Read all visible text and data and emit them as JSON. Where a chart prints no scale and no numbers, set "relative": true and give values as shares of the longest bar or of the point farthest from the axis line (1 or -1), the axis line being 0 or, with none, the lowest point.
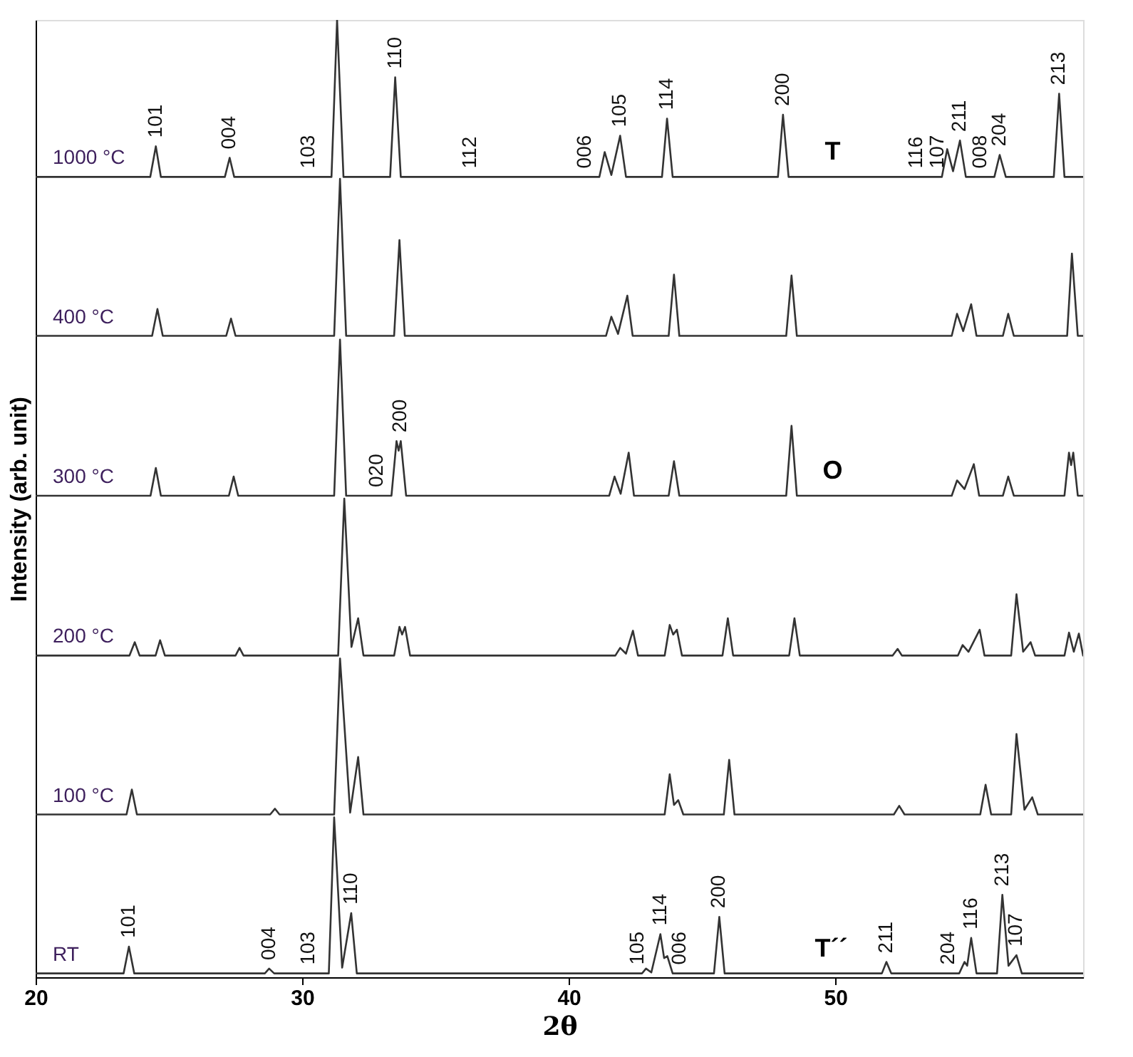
{
  "chart_data": {
    "type": "line",
    "relative": true,
    "xlabel": "2θ",
    "ylabel": "Intensity (arb. unit)",
    "xlim": [
      20,
      59.3
    ],
    "xticks": [
      20,
      30,
      40,
      50
    ],
    "grid": false,
    "legend": false,
    "marker": "none",
    "line_style": "solid",
    "series": [
      {
        "name": "1000 °C",
        "color": "#333333",
        "x": [
          20,
          24.3,
          24.51,
          24.7,
          27.1,
          27.28,
          27.45,
          31.1,
          31.31,
          31.55,
          33.3,
          33.49,
          33.7,
          41.15,
          41.35,
          41.6,
          41.93,
          42.15,
          43.5,
          43.69,
          43.9,
          47.85,
          48.04,
          48.25,
          54.0,
          54.2,
          54.42,
          54.68,
          54.9,
          55.97,
          56.17,
          56.4,
          58.2,
          58.4,
          58.6,
          59.3
        ],
        "values": [
          0.836,
          0.836,
          0.868,
          0.836,
          0.836,
          0.856,
          0.836,
          0.836,
          1.0,
          0.836,
          0.836,
          0.94,
          0.836,
          0.836,
          0.862,
          0.838,
          0.879,
          0.836,
          0.836,
          0.897,
          0.836,
          0.836,
          0.901,
          0.836,
          0.836,
          0.865,
          0.842,
          0.874,
          0.836,
          0.836,
          0.859,
          0.836,
          0.836,
          0.923,
          0.836,
          0.836
        ]
      },
      {
        "name": "400 °C",
        "color": "#333333",
        "x": [
          20,
          24.37,
          24.57,
          24.77,
          27.15,
          27.33,
          27.5,
          31.2,
          31.42,
          31.65,
          33.45,
          33.65,
          33.85,
          41.4,
          41.6,
          41.85,
          42.2,
          42.4,
          43.75,
          43.95,
          44.15,
          48.16,
          48.36,
          48.56,
          54.37,
          54.57,
          54.8,
          55.1,
          55.3,
          56.29,
          56.49,
          56.7,
          58.7,
          58.88,
          59.1,
          59.3
        ],
        "values": [
          0.67,
          0.67,
          0.698,
          0.67,
          0.67,
          0.688,
          0.67,
          0.67,
          0.834,
          0.67,
          0.67,
          0.77,
          0.67,
          0.67,
          0.69,
          0.672,
          0.712,
          0.67,
          0.67,
          0.734,
          0.67,
          0.67,
          0.733,
          0.67,
          0.67,
          0.693,
          0.675,
          0.703,
          0.67,
          0.67,
          0.693,
          0.67,
          0.67,
          0.756,
          0.67,
          0.67
        ]
      },
      {
        "name": "300 °C",
        "color": "#333333",
        "x": [
          20,
          24.31,
          24.51,
          24.7,
          27.25,
          27.43,
          27.6,
          31.2,
          31.42,
          31.65,
          33.35,
          33.54,
          33.62,
          33.7,
          33.9,
          41.52,
          41.72,
          41.95,
          42.25,
          42.45,
          43.75,
          43.95,
          44.15,
          48.16,
          48.36,
          48.56,
          54.37,
          54.57,
          54.85,
          55.2,
          55.4,
          56.29,
          56.49,
          56.7,
          58.6,
          58.77,
          58.85,
          58.93,
          59.1,
          59.3
        ],
        "values": [
          0.503,
          0.503,
          0.532,
          0.503,
          0.503,
          0.523,
          0.503,
          0.503,
          0.666,
          0.503,
          0.503,
          0.56,
          0.55,
          0.56,
          0.503,
          0.503,
          0.523,
          0.505,
          0.548,
          0.503,
          0.503,
          0.539,
          0.503,
          0.503,
          0.576,
          0.503,
          0.503,
          0.519,
          0.51,
          0.536,
          0.503,
          0.503,
          0.523,
          0.503,
          0.503,
          0.548,
          0.535,
          0.548,
          0.503,
          0.503
        ]
      },
      {
        "name": "200 °C",
        "color": "#333333",
        "x": [
          20,
          23.52,
          23.72,
          23.9,
          24.5,
          24.67,
          24.85,
          27.5,
          27.65,
          27.8,
          31.35,
          31.58,
          31.85,
          32.1,
          32.3,
          33.45,
          33.65,
          33.75,
          33.86,
          34.05,
          41.75,
          41.93,
          42.15,
          42.41,
          42.6,
          43.6,
          43.79,
          43.92,
          44.06,
          44.25,
          45.77,
          45.97,
          46.17,
          48.27,
          48.47,
          48.67,
          52.15,
          52.34,
          52.5,
          54.6,
          54.78,
          55.0,
          55.42,
          55.6,
          56.6,
          56.8,
          57.05,
          57.33,
          57.5,
          58.6,
          58.77,
          58.95,
          59.14,
          59.3
        ],
        "values": [
          0.336,
          0.336,
          0.35,
          0.336,
          0.336,
          0.352,
          0.336,
          0.336,
          0.344,
          0.336,
          0.336,
          0.5,
          0.345,
          0.375,
          0.336,
          0.336,
          0.366,
          0.358,
          0.366,
          0.336,
          0.336,
          0.344,
          0.338,
          0.362,
          0.336,
          0.336,
          0.368,
          0.358,
          0.363,
          0.336,
          0.336,
          0.375,
          0.336,
          0.336,
          0.375,
          0.336,
          0.336,
          0.343,
          0.336,
          0.336,
          0.347,
          0.34,
          0.363,
          0.336,
          0.336,
          0.4,
          0.34,
          0.35,
          0.336,
          0.336,
          0.36,
          0.34,
          0.359,
          0.336
        ]
      },
      {
        "name": "100 °C",
        "color": "#333333",
        "x": [
          20,
          23.41,
          23.61,
          23.8,
          28.8,
          28.98,
          29.15,
          31.2,
          31.42,
          31.8,
          32.1,
          32.3,
          43.6,
          43.79,
          43.95,
          44.11,
          44.3,
          45.82,
          46.02,
          46.22,
          52.2,
          52.4,
          52.6,
          55.44,
          55.64,
          55.85,
          56.6,
          56.8,
          57.1,
          57.39,
          57.6,
          59.3
        ],
        "values": [
          0.17,
          0.17,
          0.196,
          0.17,
          0.17,
          0.176,
          0.17,
          0.17,
          0.333,
          0.172,
          0.23,
          0.17,
          0.17,
          0.212,
          0.18,
          0.185,
          0.17,
          0.17,
          0.227,
          0.17,
          0.17,
          0.179,
          0.17,
          0.17,
          0.201,
          0.17,
          0.17,
          0.254,
          0.175,
          0.188,
          0.17,
          0.17
        ]
      },
      {
        "name": "RT",
        "color": "#333333",
        "x": [
          20,
          23.3,
          23.5,
          23.7,
          28.6,
          28.76,
          28.95,
          31.0,
          31.2,
          31.5,
          31.84,
          32.05,
          42.75,
          42.9,
          43.1,
          43.44,
          43.58,
          43.7,
          43.9,
          45.45,
          45.65,
          45.85,
          51.75,
          51.92,
          52.1,
          54.65,
          54.85,
          54.95,
          55.1,
          55.3,
          56.07,
          56.27,
          56.5,
          56.8,
          57.0,
          59.3
        ],
        "values": [
          0.004,
          0.004,
          0.032,
          0.004,
          0.004,
          0.009,
          0.004,
          0.004,
          0.167,
          0.01,
          0.067,
          0.004,
          0.004,
          0.009,
          0.005,
          0.045,
          0.02,
          0.022,
          0.004,
          0.004,
          0.063,
          0.004,
          0.004,
          0.016,
          0.004,
          0.004,
          0.016,
          0.012,
          0.041,
          0.004,
          0.004,
          0.086,
          0.012,
          0.023,
          0.004,
          0.004
        ]
      }
    ],
    "annotations": [
      {
        "text": "101",
        "x": 24.51,
        "y": 0.868
      },
      {
        "text": "004",
        "x": 27.28,
        "y": 0.856
      },
      {
        "text": "103",
        "x": 30.25,
        "y": 0.836
      },
      {
        "text": "110",
        "x": 33.49,
        "y": 0.94
      },
      {
        "text": "112",
        "x": 36.3,
        "y": 0.836
      },
      {
        "text": "006",
        "x": 40.6,
        "y": 0.836
      },
      {
        "text": "105",
        "x": 41.93,
        "y": 0.879
      },
      {
        "text": "114",
        "x": 43.69,
        "y": 0.897
      },
      {
        "text": "200",
        "x": 48.04,
        "y": 0.901
      },
      {
        "text": "T",
        "x": 49.9,
        "y": 0.836
      },
      {
        "text": "116",
        "x": 53.05,
        "y": 0.836
      },
      {
        "text": "107",
        "x": 53.85,
        "y": 0.836
      },
      {
        "text": "211",
        "x": 54.68,
        "y": 0.874
      },
      {
        "text": "008",
        "x": 55.45,
        "y": 0.836
      },
      {
        "text": "204",
        "x": 56.17,
        "y": 0.859
      },
      {
        "text": "213",
        "x": 58.4,
        "y": 0.923
      },
      {
        "text": "020",
        "x": 32.8,
        "y": 0.503
      },
      {
        "text": "200",
        "x": 33.7,
        "y": 0.56
      },
      {
        "text": "O",
        "x": 49.9,
        "y": 0.503
      },
      {
        "text": "101",
        "x": 23.5,
        "y": 0.032
      },
      {
        "text": "004",
        "x": 28.76,
        "y": 0.009
      },
      {
        "text": "103",
        "x": 30.25,
        "y": 0.004
      },
      {
        "text": "110",
        "x": 31.84,
        "y": 0.067
      },
      {
        "text": "105",
        "x": 42.6,
        "y": 0.004
      },
      {
        "text": "114",
        "x": 43.44,
        "y": 0.045
      },
      {
        "text": "006",
        "x": 44.16,
        "y": 0.004
      },
      {
        "text": "200",
        "x": 45.65,
        "y": 0.063
      },
      {
        "text": "T´´",
        "x": 49.85,
        "y": 0.004
      },
      {
        "text": "211",
        "x": 51.92,
        "y": 0.016
      },
      {
        "text": "204",
        "x": 54.25,
        "y": 0.004
      },
      {
        "text": "116",
        "x": 55.1,
        "y": 0.041
      },
      {
        "text": "213",
        "x": 56.27,
        "y": 0.086
      },
      {
        "text": "107",
        "x": 56.8,
        "y": 0.023
      }
    ]
  }
}
